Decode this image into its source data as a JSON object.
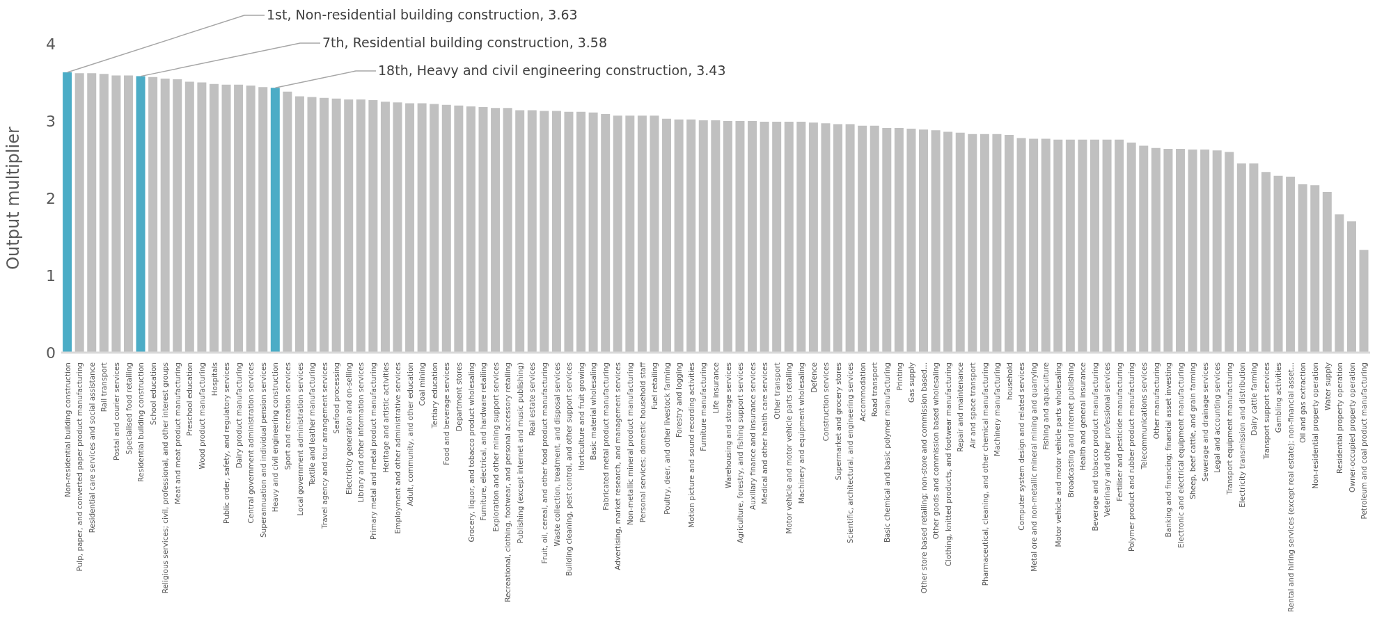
{
  "chart_data": {
    "type": "bar",
    "ylabel": "Output multiplier",
    "ylim": [
      0,
      4
    ],
    "yticks": [
      0,
      1,
      2,
      3,
      4
    ],
    "grid": false,
    "legend": false,
    "categories": [
      "Non-residential building construction",
      "Pulp, paper, and converted paper product manufacturing",
      "Residential care services and social assistance",
      "Rail transport",
      "Postal and courier services",
      "Specialised food retailing",
      "Residential building construction",
      "School education",
      "Religious services; civil, professional, and other interest groups",
      "Meat and meat product manufacturing",
      "Preschool education",
      "Wood product manufacturing",
      "Hospitals",
      "Public order, safety, and regulatory services",
      "Dairy product manufacturing",
      "Central government administration services",
      "Superannuation and individual pension services",
      "Heavy and civil engineering construction",
      "Sport and recreation services",
      "Local government administration services",
      "Textile and leather manufacturing",
      "Travel agency and tour arrangement services",
      "Seafood processing",
      "Electricity generation and on-selling",
      "Library and other information services",
      "Primary metal and metal product manufacturing",
      "Heritage and artistic activities",
      "Employment and other administrative services",
      "Adult, community, and other education",
      "Coal mining",
      "Tertiary education",
      "Food and beverage services",
      "Department stores",
      "Grocery, liquor, and tobacco product wholesaling",
      "Furniture, electrical, and hardware retailing",
      "Exploration and other mining support services",
      "Recreational, clothing, footwear, and personal accessory retailing",
      "Publishing (except internet and music publishing)",
      "Real estate services",
      "Fruit, oil, cereal, and other food product manufacturing",
      "Waste collection, treatment, and disposal services",
      "Building cleaning, pest control, and other support services",
      "Horticulture and fruit growing",
      "Basic material wholesaling",
      "Fabricated metal product manufacturing",
      "Advertising, market research, and management services",
      "Non-metallic mineral product manufacturing",
      "Personal services; domestic household staff",
      "Fuel retailing",
      "Poultry, deer, and other livestock farming",
      "Forestry and logging",
      "Motion picture and sound recording activities",
      "Furniture manufacturing",
      "Life insurance",
      "Warehousing and storage services",
      "Agriculture, forestry, and fishing support services",
      "Auxiliary finance and insurance services",
      "Medical and other health care services",
      "Other transport",
      "Motor vehicle and motor vehicle parts retailing",
      "Machinery and equipment wholesaling",
      "Defence",
      "Construction services",
      "Supermarket and grocery stores",
      "Scientific, architectural, and engineering services",
      "Accommodation",
      "Road transport",
      "Basic chemical and basic polymer manufacturing",
      "Printing",
      "Gas supply",
      "Other store based retailing; non-store and commission based...",
      "Other goods and commission based wholesaling",
      "Clothing, knitted products, and footwear manufacturing",
      "Repair and maintenance",
      "Air and space transport",
      "Pharmaceutical, cleaning, and other chemical manufacturing",
      "Machinery manufacturing",
      "household",
      "Computer system design and related services",
      "Metal ore and non-metallic mineral mining and quarrying",
      "Fishing and aquaculture",
      "Motor vehicle and motor vehicle parts wholesaling",
      "Broadcasting and internet publishing",
      "Health and general insurance",
      "Beverage and tobacco product manufacturing",
      "Veterinary and other professional services",
      "Fertiliser and pesticide manufacturing",
      "Polymer product and rubber product manufacturing",
      "Telecommunications services",
      "Other manufacturing",
      "Banking and financing; financial asset investing",
      "Electronic and electrical equipment manufacturing",
      "Sheep, beef cattle, and grain farming",
      "Sewerage and drainage services",
      "Legal and accounting services",
      "Transport equipment manufacturing",
      "Electricity transmission and distribution",
      "Dairy cattle farming",
      "Transport support services",
      "Gambling activities",
      "Rental and hiring services (except real estate); non-financial asset...",
      "Oil and gas extraction",
      "Non-residential property operation",
      "Water supply",
      "Residential property operation",
      "Owner-occupied property operation",
      "Petroleum and coal product manufacturing"
    ],
    "values": [
      3.63,
      3.62,
      3.62,
      3.61,
      3.59,
      3.59,
      3.58,
      3.57,
      3.55,
      3.54,
      3.51,
      3.5,
      3.48,
      3.47,
      3.47,
      3.46,
      3.44,
      3.43,
      3.38,
      3.32,
      3.31,
      3.3,
      3.29,
      3.28,
      3.28,
      3.27,
      3.25,
      3.24,
      3.23,
      3.23,
      3.22,
      3.21,
      3.2,
      3.19,
      3.18,
      3.17,
      3.17,
      3.14,
      3.14,
      3.13,
      3.13,
      3.12,
      3.12,
      3.11,
      3.09,
      3.07,
      3.07,
      3.07,
      3.07,
      3.03,
      3.02,
      3.02,
      3.01,
      3.01,
      3.0,
      3.0,
      3.0,
      2.99,
      2.99,
      2.99,
      2.99,
      2.98,
      2.97,
      2.96,
      2.96,
      2.94,
      2.94,
      2.91,
      2.91,
      2.9,
      2.89,
      2.88,
      2.86,
      2.85,
      2.83,
      2.83,
      2.83,
      2.82,
      2.78,
      2.77,
      2.77,
      2.76,
      2.76,
      2.76,
      2.76,
      2.76,
      2.76,
      2.72,
      2.68,
      2.65,
      2.64,
      2.64,
      2.63,
      2.63,
      2.62,
      2.6,
      2.45,
      2.45,
      2.34,
      2.29,
      2.28,
      2.18,
      2.17,
      2.08,
      1.79,
      1.7,
      1.33
    ],
    "colors": [
      "#4bacc6",
      "#c0c0c0",
      "#c0c0c0",
      "#c0c0c0",
      "#c0c0c0",
      "#c0c0c0",
      "#4bacc6",
      "#c0c0c0",
      "#c0c0c0",
      "#c0c0c0",
      "#c0c0c0",
      "#c0c0c0",
      "#c0c0c0",
      "#c0c0c0",
      "#c0c0c0",
      "#c0c0c0",
      "#c0c0c0",
      "#4bacc6",
      "#c0c0c0",
      "#c0c0c0",
      "#c0c0c0",
      "#c0c0c0",
      "#c0c0c0",
      "#c0c0c0",
      "#c0c0c0",
      "#c0c0c0",
      "#c0c0c0",
      "#c0c0c0",
      "#c0c0c0",
      "#c0c0c0",
      "#c0c0c0",
      "#c0c0c0",
      "#c0c0c0",
      "#c0c0c0",
      "#c0c0c0",
      "#c0c0c0",
      "#c0c0c0",
      "#c0c0c0",
      "#c0c0c0",
      "#c0c0c0",
      "#c0c0c0",
      "#c0c0c0",
      "#c0c0c0",
      "#c0c0c0",
      "#c0c0c0",
      "#c0c0c0",
      "#c0c0c0",
      "#c0c0c0",
      "#c0c0c0",
      "#c0c0c0",
      "#c0c0c0",
      "#c0c0c0",
      "#c0c0c0",
      "#c0c0c0",
      "#c0c0c0",
      "#c0c0c0",
      "#c0c0c0",
      "#c0c0c0",
      "#c0c0c0",
      "#c0c0c0",
      "#c0c0c0",
      "#c0c0c0",
      "#c0c0c0",
      "#c0c0c0",
      "#c0c0c0",
      "#c0c0c0",
      "#c0c0c0",
      "#c0c0c0",
      "#c0c0c0",
      "#c0c0c0",
      "#c0c0c0",
      "#c0c0c0",
      "#c0c0c0",
      "#c0c0c0",
      "#c0c0c0",
      "#c0c0c0",
      "#c0c0c0",
      "#c0c0c0",
      "#c0c0c0",
      "#c0c0c0",
      "#c0c0c0",
      "#c0c0c0",
      "#c0c0c0",
      "#c0c0c0",
      "#c0c0c0",
      "#c0c0c0",
      "#c0c0c0",
      "#c0c0c0",
      "#c0c0c0",
      "#c0c0c0",
      "#c0c0c0",
      "#c0c0c0",
      "#c0c0c0",
      "#c0c0c0",
      "#c0c0c0",
      "#c0c0c0",
      "#c0c0c0",
      "#c0c0c0",
      "#c0c0c0",
      "#c0c0c0",
      "#c0c0c0",
      "#c0c0c0",
      "#c0c0c0",
      "#c0c0c0",
      "#c0c0c0",
      "#c0c0c0",
      "#c0c0c0"
    ],
    "annotations": [
      {
        "text": "1st, Non-residential building construction, 3.63",
        "x": "Non-residential building construction",
        "y": 3.63
      },
      {
        "text": "7th, Residential building construction, 3.58",
        "x": "Residential building construction",
        "y": 3.58
      },
      {
        "text": "18th, Heavy and civil engineering construction, 3.43",
        "x": "Heavy and civil engineering construction",
        "y": 3.43
      }
    ]
  }
}
